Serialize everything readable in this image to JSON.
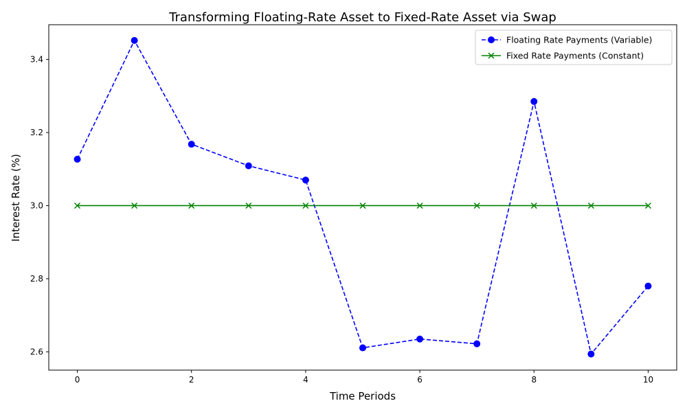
{
  "chart_data": {
    "type": "line",
    "title": "Transforming Floating-Rate Asset to Fixed-Rate Asset via Swap",
    "xlabel": "Time Periods",
    "ylabel": "Interest Rate (%)",
    "x": [
      0,
      1,
      2,
      3,
      4,
      5,
      6,
      7,
      8,
      9,
      10
    ],
    "xlim": [
      -0.5,
      10.5
    ],
    "ylim": [
      2.55,
      3.495
    ],
    "xticks": [
      0,
      2,
      4,
      6,
      8,
      10
    ],
    "yticks": [
      2.6,
      2.8,
      3.0,
      3.2,
      3.4
    ],
    "xtick_labels": [
      "0",
      "2",
      "4",
      "6",
      "8",
      "10"
    ],
    "ytick_labels": [
      "2.6",
      "2.8",
      "3.0",
      "3.2",
      "3.4"
    ],
    "grid": false,
    "legend_position": "top-right",
    "series": [
      {
        "name": "Floating Rate Payments (Variable)",
        "values": [
          3.127,
          3.452,
          3.168,
          3.109,
          3.07,
          2.611,
          2.635,
          2.622,
          3.285,
          2.594,
          2.78
        ],
        "color": "#0000ff",
        "linestyle": "dashed",
        "marker": "circle"
      },
      {
        "name": "Fixed Rate Payments (Constant)",
        "values": [
          3.0,
          3.0,
          3.0,
          3.0,
          3.0,
          3.0,
          3.0,
          3.0,
          3.0,
          3.0,
          3.0
        ],
        "color": "#008000",
        "linestyle": "solid",
        "marker": "x"
      }
    ]
  }
}
